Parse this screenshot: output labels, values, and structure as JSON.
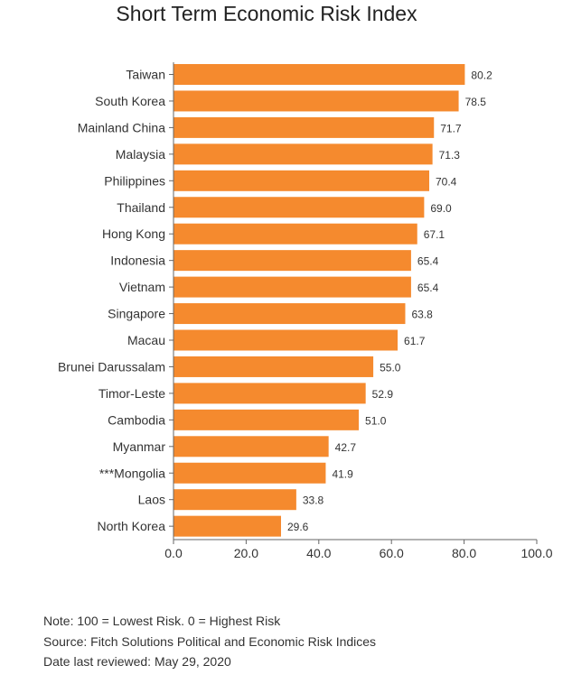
{
  "chart_data": {
    "type": "bar",
    "orientation": "horizontal",
    "title": "Short Term Economic Risk Index",
    "xlabel": "",
    "ylabel": "",
    "xlim": [
      0,
      100
    ],
    "x_ticks": [
      "0.0",
      "20.0",
      "40.0",
      "60.0",
      "80.0",
      "100.0"
    ],
    "grid": false,
    "bar_color": "#f58a2e",
    "categories": [
      "Taiwan",
      "South Korea",
      "Mainland China",
      "Malaysia",
      "Philippines",
      "Thailand",
      "Hong Kong",
      "Indonesia",
      "Vietnam",
      "Singapore",
      "Macau",
      "Brunei Darussalam",
      "Timor-Leste",
      "Cambodia",
      "Myanmar",
      "***Mongolia",
      "Laos",
      "North Korea"
    ],
    "values": [
      80.2,
      78.5,
      71.7,
      71.3,
      70.4,
      69.0,
      67.1,
      65.4,
      65.4,
      63.8,
      61.7,
      55.0,
      52.9,
      51.0,
      42.7,
      41.9,
      33.8,
      29.6
    ],
    "value_labels": [
      "80.2",
      "78.5",
      "71.7",
      "71.3",
      "70.4",
      "69.0",
      "67.1",
      "65.4",
      "65.4",
      "63.8",
      "61.7",
      "55.0",
      "52.9",
      "51.0",
      "42.7",
      "41.9",
      "33.8",
      "29.6"
    ]
  },
  "notes": {
    "note": "Note: 100 = Lowest Risk. 0 = Highest Risk",
    "source": "Source: Fitch Solutions Political and Economic Risk Indices",
    "date": "Date last reviewed: May 29, 2020"
  }
}
